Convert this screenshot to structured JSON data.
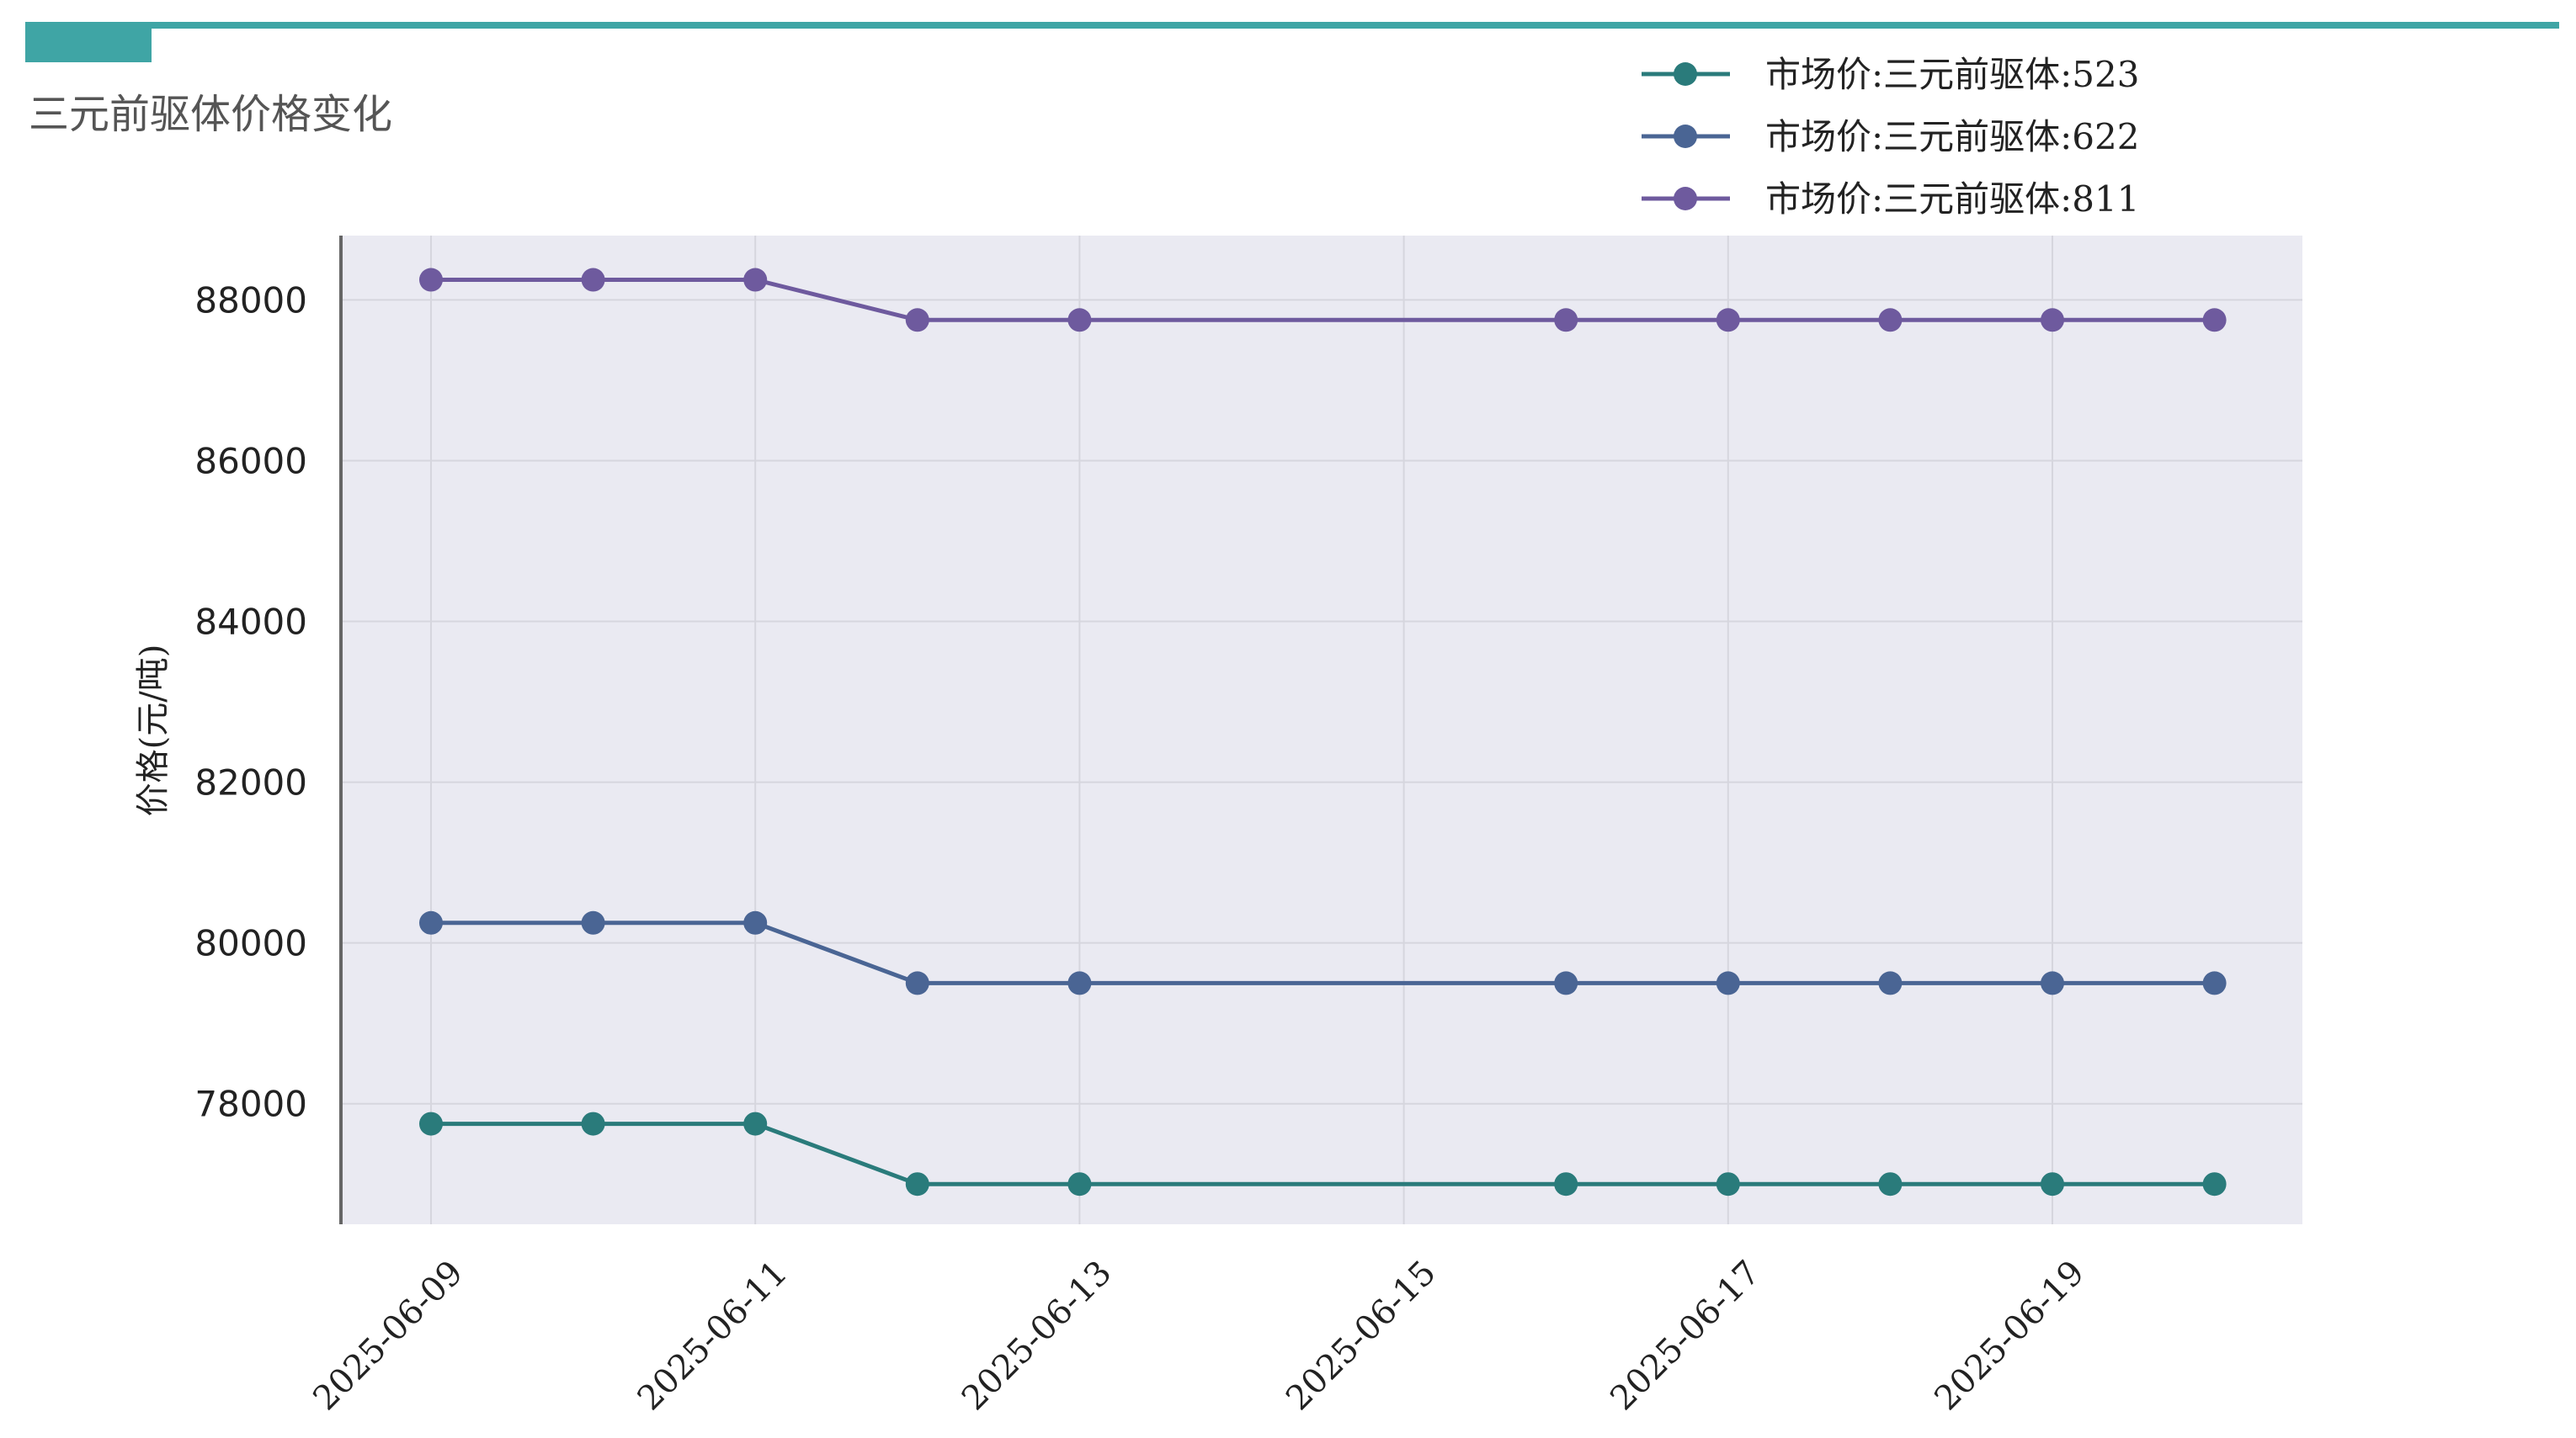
{
  "header": {
    "title": "三元前驱体价格变化",
    "accent_color": "#3fa5a5"
  },
  "chart_data": {
    "type": "line",
    "title": "三元前驱体价格变化",
    "xlabel": "",
    "ylabel": "价格(元/吨)",
    "x": [
      "2025-06-09",
      "2025-06-10",
      "2025-06-11",
      "2025-06-12",
      "2025-06-13",
      "2025-06-16",
      "2025-06-17",
      "2025-06-18",
      "2025-06-19",
      "2025-06-20"
    ],
    "x_ticks": [
      "2025-06-09",
      "2025-06-11",
      "2025-06-13",
      "2025-06-15",
      "2025-06-17",
      "2025-06-19"
    ],
    "ylim": [
      76500,
      88800
    ],
    "y_ticks": [
      78000,
      80000,
      82000,
      84000,
      86000,
      88000
    ],
    "grid": true,
    "legend_position": "top-right",
    "plot_background": "#eaeaf2",
    "series": [
      {
        "name": "市场价:三元前驱体:523",
        "color": "#2a7b7b",
        "values": [
          77750,
          77750,
          77750,
          77000,
          77000,
          77000,
          77000,
          77000,
          77000,
          77000
        ]
      },
      {
        "name": "市场价:三元前驱体:622",
        "color": "#4a6594",
        "values": [
          80250,
          80250,
          80250,
          79500,
          79500,
          79500,
          79500,
          79500,
          79500,
          79500
        ]
      },
      {
        "name": "市场价:三元前驱体:811",
        "color": "#6e5a9e",
        "values": [
          88250,
          88250,
          88250,
          87750,
          87750,
          87750,
          87750,
          87750,
          87750,
          87750
        ]
      }
    ]
  }
}
